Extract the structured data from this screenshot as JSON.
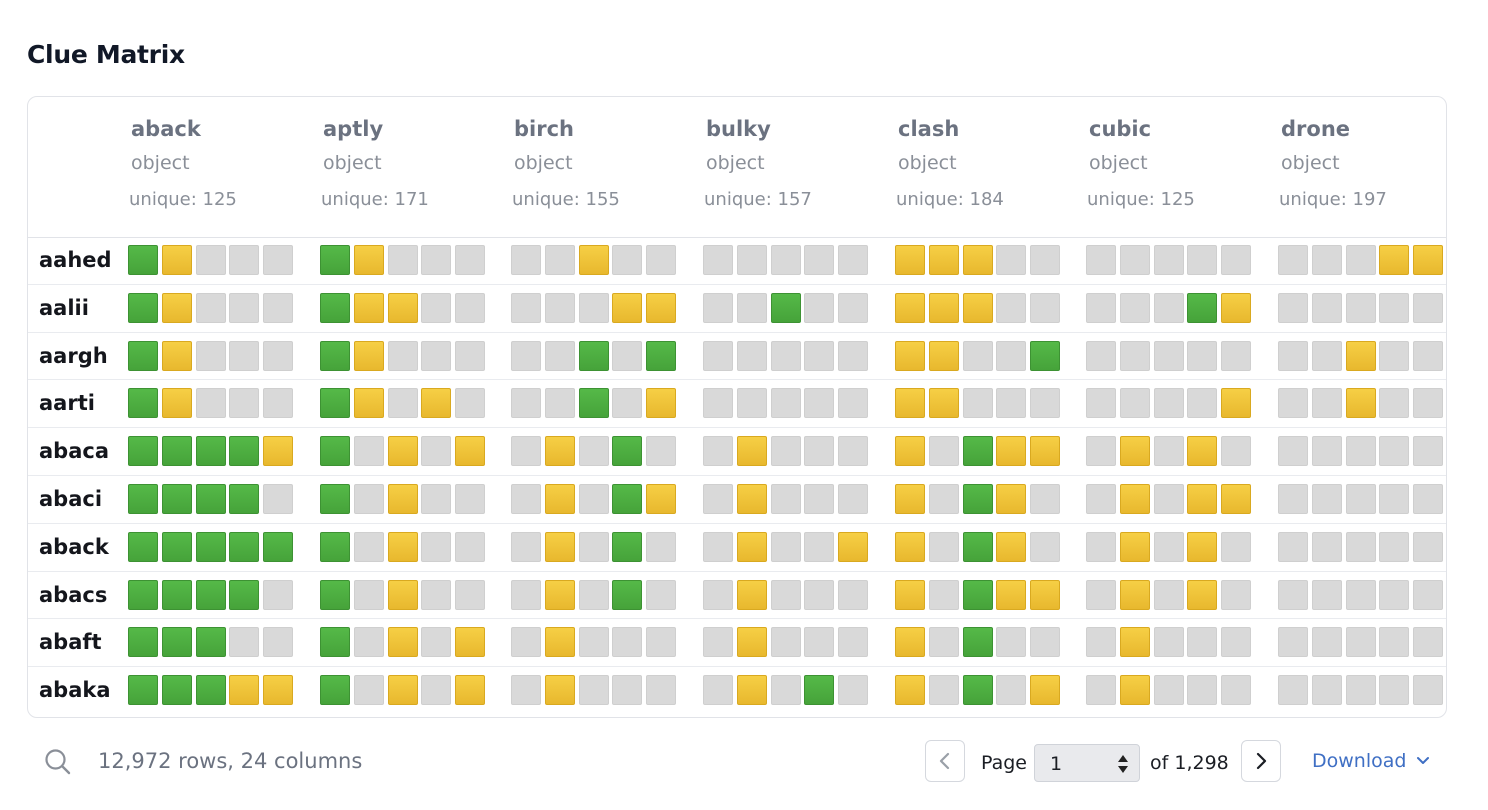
{
  "page": {
    "title": "Clue Matrix"
  },
  "colors": {
    "gray": "#d9d9d9",
    "yellow": "#f0c23a",
    "green": "#4caf42",
    "link": "#3f6fc4"
  },
  "table": {
    "columns": [
      {
        "name": "aback",
        "type": "object",
        "unique": "unique: 125"
      },
      {
        "name": "aptly",
        "type": "object",
        "unique": "unique: 171"
      },
      {
        "name": "birch",
        "type": "object",
        "unique": "unique: 155"
      },
      {
        "name": "bulky",
        "type": "object",
        "unique": "unique: 157"
      },
      {
        "name": "clash",
        "type": "object",
        "unique": "unique: 184"
      },
      {
        "name": "cubic",
        "type": "object",
        "unique": "unique: 125"
      },
      {
        "name": "drone",
        "type": "object",
        "unique": "unique: 197"
      }
    ],
    "rows": [
      {
        "label": "aahed",
        "cells": [
          "GYBBB",
          "GYBBB",
          "BBYBB",
          "BBBBB",
          "YYYBB",
          "BBBBB",
          "BBBYY"
        ]
      },
      {
        "label": "aalii",
        "cells": [
          "GYBBB",
          "GYYBB",
          "BBBYY",
          "BBGBB",
          "YYYBB",
          "BBBGY",
          "BBBBB"
        ]
      },
      {
        "label": "aargh",
        "cells": [
          "GYBBB",
          "GYBBB",
          "BBGBG",
          "BBBBB",
          "YYBBG",
          "BBBBB",
          "BBYBB"
        ]
      },
      {
        "label": "aarti",
        "cells": [
          "GYBBB",
          "GYBYB",
          "BBGBY",
          "BBBBB",
          "YYBBB",
          "BBBBY",
          "BBYBB"
        ]
      },
      {
        "label": "abaca",
        "cells": [
          "GGGGY",
          "GBYBY",
          "BYBGB",
          "BYBBB",
          "YBGYY",
          "BYBYB",
          "BBBBB"
        ]
      },
      {
        "label": "abaci",
        "cells": [
          "GGGGB",
          "GBYBB",
          "BYBGY",
          "BYBBB",
          "YBGYB",
          "BYBYY",
          "BBBBB"
        ]
      },
      {
        "label": "aback",
        "cells": [
          "GGGGG",
          "GBYBB",
          "BYBGB",
          "BYBBY",
          "YBGYB",
          "BYBYB",
          "BBBBB"
        ]
      },
      {
        "label": "abacs",
        "cells": [
          "GGGGB",
          "GBYBB",
          "BYBGB",
          "BYBBB",
          "YBGYY",
          "BYBYB",
          "BBBBB"
        ]
      },
      {
        "label": "abaft",
        "cells": [
          "GGGBB",
          "GBYBY",
          "BYBBB",
          "BYBBB",
          "YBGBB",
          "BYBBB",
          "BBBBB"
        ]
      },
      {
        "label": "abaka",
        "cells": [
          "GGGYY",
          "GBYBY",
          "BYBBB",
          "BYBGB",
          "YBGBY",
          "BYBBB",
          "BBBBB"
        ]
      }
    ]
  },
  "footer": {
    "search_icon": "search-icon",
    "summary": "12,972 rows, 24 columns",
    "page_label": "Page",
    "page_value": "1",
    "page_total": "of 1,298",
    "download_label": "Download"
  }
}
